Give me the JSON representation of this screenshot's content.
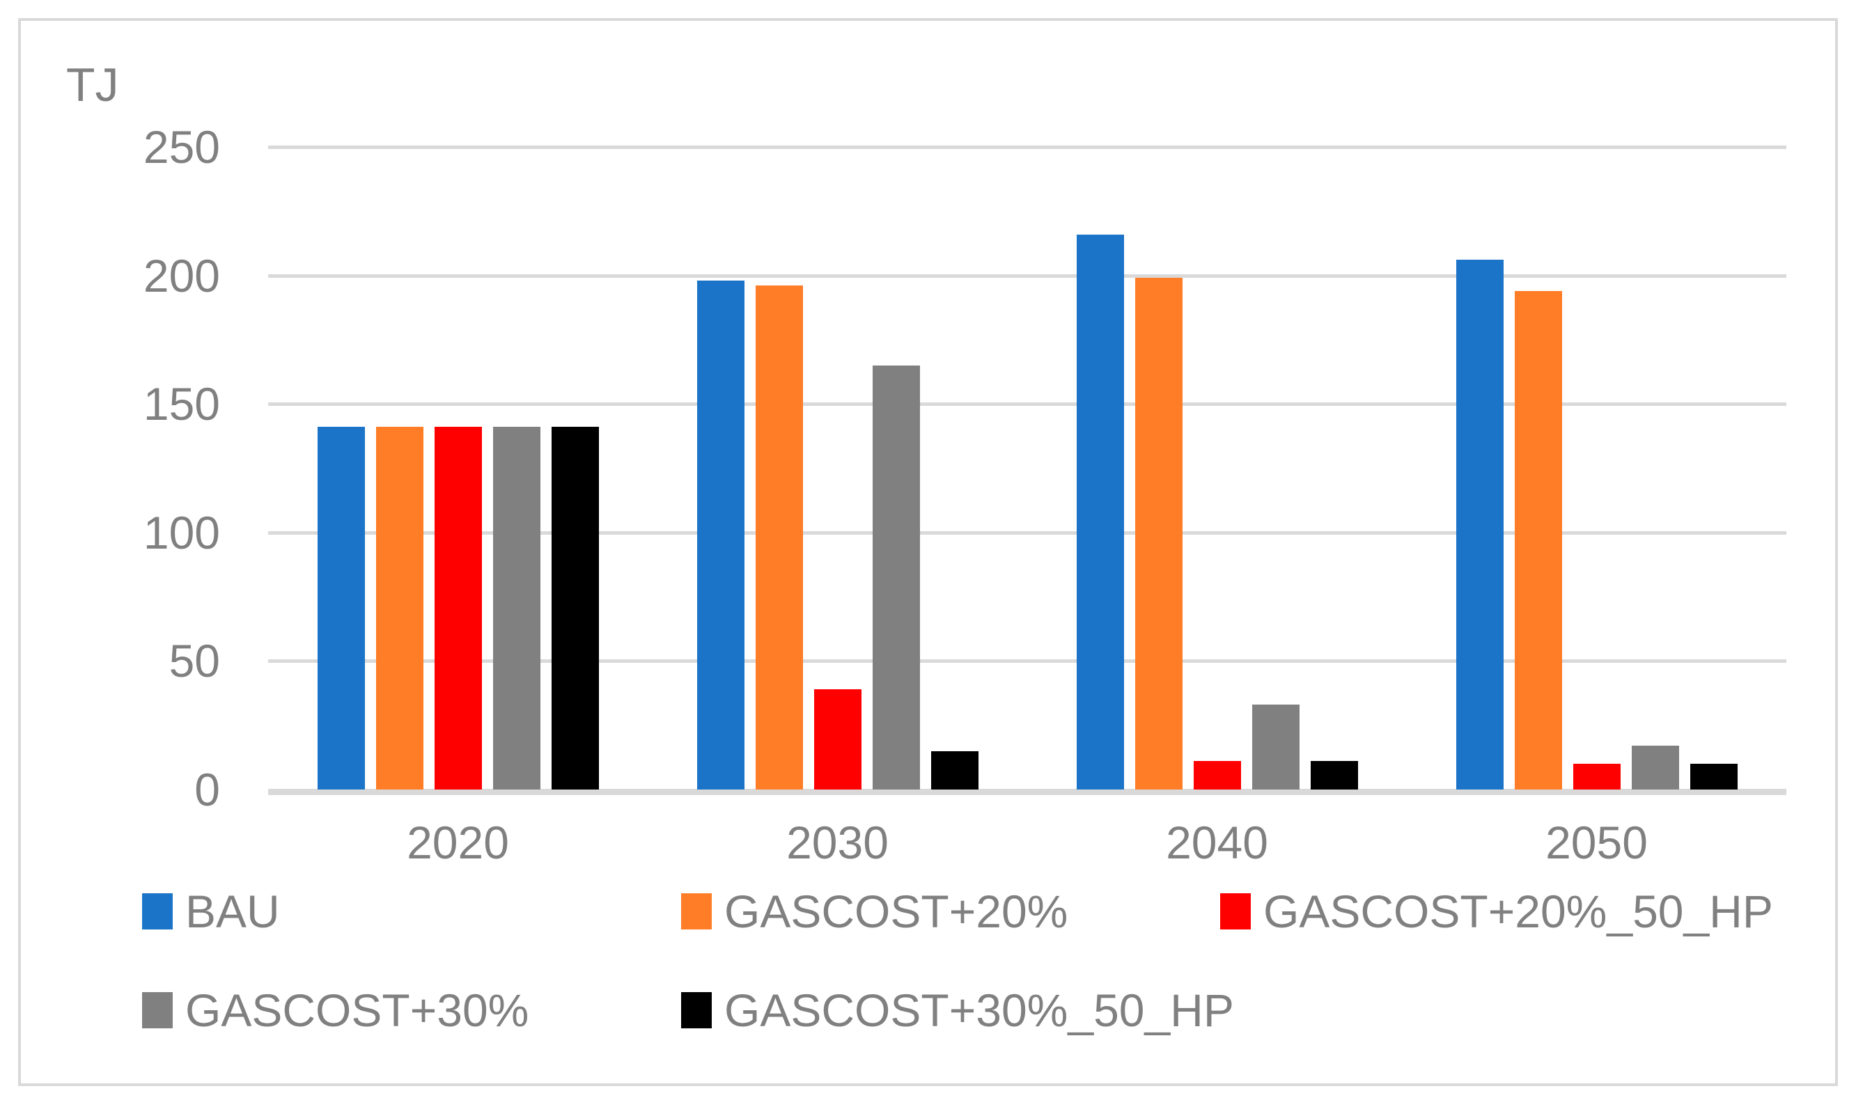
{
  "chart_data": {
    "type": "bar",
    "unit_label": "TJ",
    "categories": [
      "2020",
      "2030",
      "2040",
      "2050"
    ],
    "series": [
      {
        "name": "BAU",
        "color": "#1B74C8",
        "values": [
          141,
          198,
          216,
          206
        ]
      },
      {
        "name": "GASCOST+20%",
        "color": "#FF7D26",
        "values": [
          141,
          196,
          199,
          194
        ]
      },
      {
        "name": "GASCOST+20%_50_HP",
        "color": "#FF0000",
        "values": [
          141,
          39,
          11,
          10
        ]
      },
      {
        "name": "GASCOST+30%",
        "color": "#808080",
        "values": [
          141,
          165,
          33,
          17
        ]
      },
      {
        "name": "GASCOST+30%_50_HP",
        "color": "#000000",
        "values": [
          141,
          15,
          11,
          10
        ]
      }
    ],
    "ylim": [
      0,
      250
    ],
    "yticks": [
      0,
      50,
      100,
      150,
      200,
      250
    ],
    "xlabel": "",
    "ylabel": "TJ",
    "grid": true,
    "legend_position": "bottom",
    "gridline_color": "#D9D9D9",
    "text_color": "#808080"
  }
}
